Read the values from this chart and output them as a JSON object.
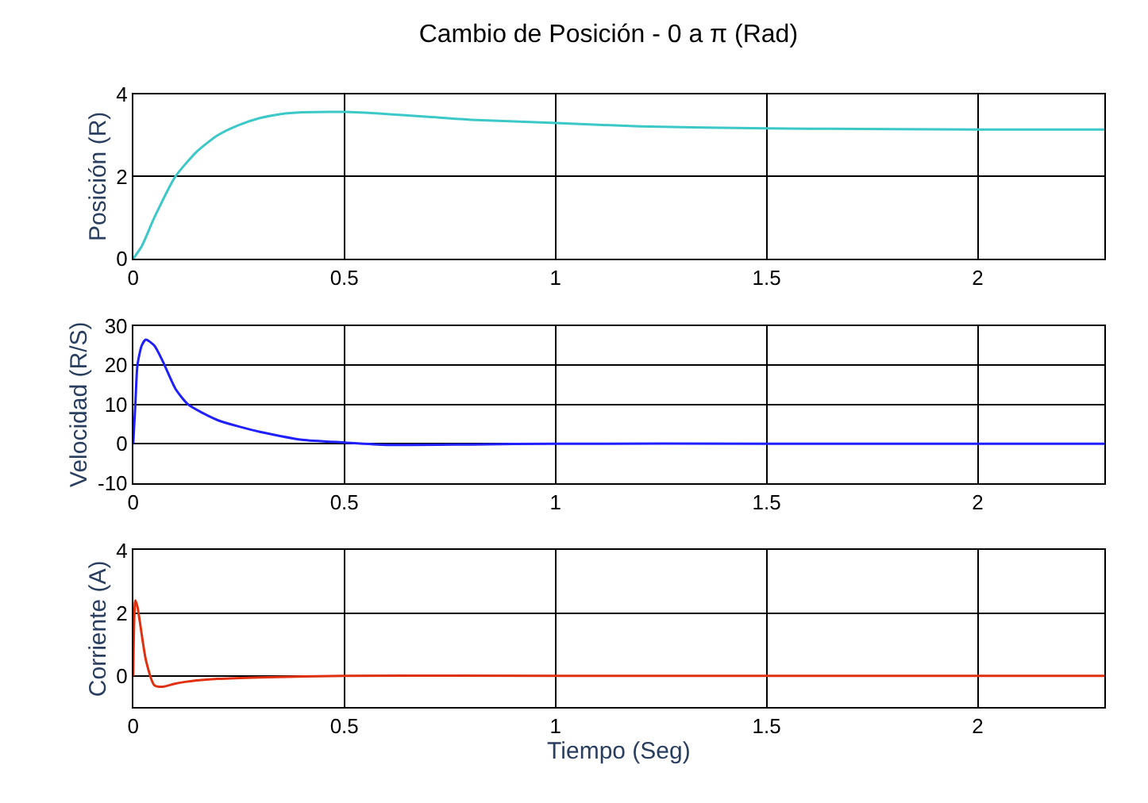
{
  "chart_data": [
    {
      "type": "line",
      "title": "Cambio de Posición - 0 a π (Rad)",
      "ylabel": "Posición (R)",
      "xlim": [
        0,
        2.3
      ],
      "xticks": [
        0,
        0.5,
        1,
        1.5,
        2
      ],
      "ylim": [
        0,
        4
      ],
      "yticks": [
        0,
        2,
        4
      ],
      "grid": true,
      "series": [
        {
          "color": "#3cc8c8",
          "x": [
            0,
            0.02,
            0.05,
            0.1,
            0.15,
            0.2,
            0.25,
            0.3,
            0.35,
            0.4,
            0.5,
            0.6,
            0.7,
            0.8,
            1.0,
            1.2,
            1.5,
            1.8,
            2.0,
            2.3
          ],
          "values": [
            0,
            0.3,
            1.0,
            2.0,
            2.6,
            3.0,
            3.25,
            3.42,
            3.52,
            3.56,
            3.57,
            3.52,
            3.45,
            3.38,
            3.3,
            3.22,
            3.17,
            3.15,
            3.14,
            3.14
          ]
        }
      ]
    },
    {
      "type": "line",
      "ylabel": "Velocidad (R/S)",
      "xlim": [
        0,
        2.3
      ],
      "xticks": [
        0,
        0.5,
        1,
        1.5,
        2
      ],
      "ylim": [
        -10,
        30
      ],
      "yticks": [
        -10,
        0,
        10,
        20,
        30
      ],
      "grid": true,
      "series": [
        {
          "color": "#2020ff",
          "x": [
            0,
            0.005,
            0.01,
            0.02,
            0.03,
            0.05,
            0.07,
            0.1,
            0.13,
            0.2,
            0.3,
            0.4,
            0.5,
            0.6,
            0.8,
            1.0,
            1.5,
            2.0,
            2.3
          ],
          "values": [
            0,
            10,
            20,
            25,
            26.5,
            25,
            21,
            14,
            10,
            6,
            3,
            1,
            0.3,
            -0.3,
            -0.2,
            0,
            0,
            0,
            0
          ]
        }
      ]
    },
    {
      "type": "line",
      "ylabel": "Corriente (A)",
      "xlabel": "Tiempo (Seg)",
      "xlim": [
        0,
        2.3
      ],
      "xticks": [
        0,
        0.5,
        1,
        1.5,
        2
      ],
      "ylim": [
        -1,
        4
      ],
      "yticks": [
        0,
        2,
        4
      ],
      "grid": true,
      "series": [
        {
          "color": "#e03010",
          "x": [
            0,
            0.005,
            0.01,
            0.03,
            0.05,
            0.07,
            0.1,
            0.15,
            0.2,
            0.3,
            0.5,
            1,
            1.5,
            2,
            2.3
          ],
          "values": [
            0,
            2.4,
            2.2,
            0.5,
            -0.3,
            -0.35,
            -0.25,
            -0.15,
            -0.1,
            -0.05,
            0,
            0,
            0,
            0,
            0
          ]
        }
      ]
    }
  ]
}
